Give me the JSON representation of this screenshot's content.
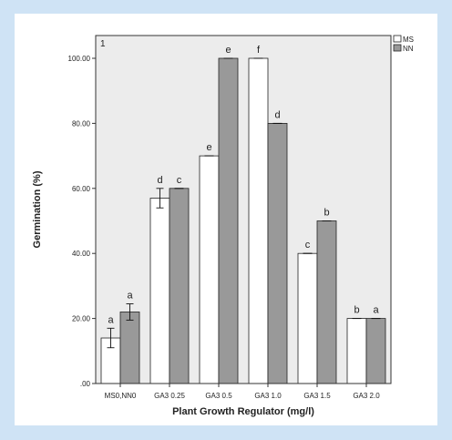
{
  "chart_data": {
    "type": "bar",
    "panel_label": "1",
    "xlabel": "Plant Growth Regulator (mg/l)",
    "ylabel": "Germination (%)",
    "ylim": [
      0,
      100
    ],
    "yticks": [
      ".00",
      "20.00",
      "40.00",
      "60.00",
      "80.00",
      "100.00"
    ],
    "ytick_values": [
      0,
      20,
      40,
      60,
      80,
      100
    ],
    "categories": [
      "MS0,NN0",
      "GA3 0.25",
      "GA3 0.5",
      "GA3 1.0",
      "GA3 1.5",
      "GA3 2.0"
    ],
    "legend_position": "top-right",
    "grid": false,
    "series": [
      {
        "name": "MS",
        "color": "#ffffff",
        "values": [
          14,
          57,
          70,
          100,
          40,
          20
        ],
        "errors": [
          3,
          3,
          0,
          0,
          0,
          0
        ],
        "letters": [
          "a",
          "d",
          "e",
          "f",
          "c",
          "b"
        ]
      },
      {
        "name": "NN",
        "color": "#999999",
        "values": [
          22,
          60,
          100,
          80,
          50,
          20
        ],
        "errors": [
          2.5,
          0,
          0,
          0,
          0,
          0
        ],
        "letters": [
          "a",
          "c",
          "e",
          "d",
          "b",
          "a"
        ]
      }
    ]
  }
}
